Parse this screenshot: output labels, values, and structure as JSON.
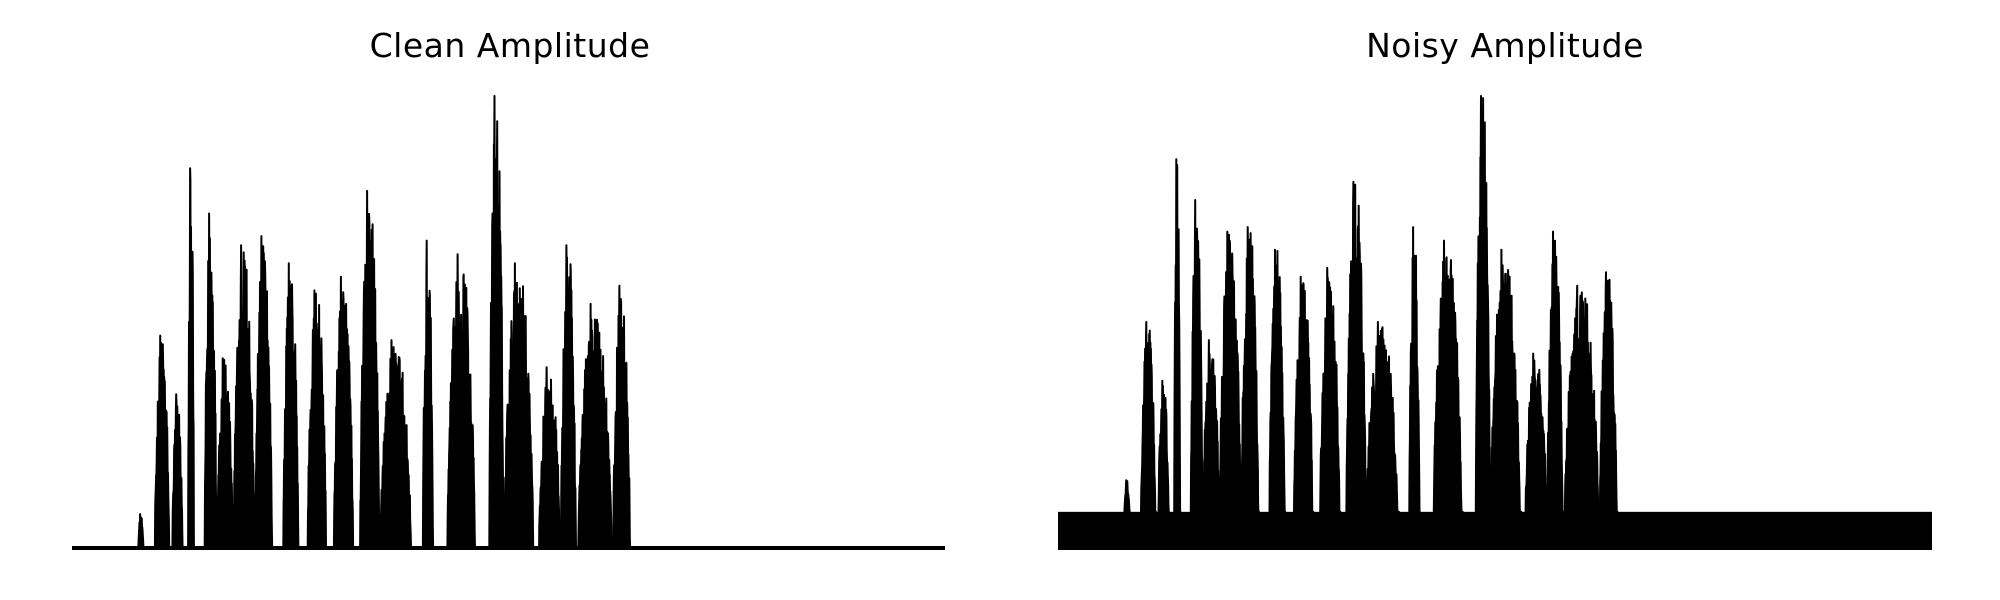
{
  "chart_data": [
    {
      "type": "area",
      "title": "Clean Amplitude",
      "xlabel": "",
      "ylabel": "",
      "axes_visible": false,
      "grid": false,
      "color": "#000000",
      "ylim": [
        0,
        1.0
      ],
      "noise_floor": 0.0,
      "x_range": [
        0,
        1000
      ],
      "bursts": [
        {
          "start": 76,
          "end": 82,
          "peak": 0.075
        },
        {
          "start": 95,
          "end": 112,
          "peak": 0.47
        },
        {
          "start": 115,
          "end": 127,
          "peak": 0.34
        },
        {
          "start": 133,
          "end": 140,
          "peak": 0.84
        },
        {
          "start": 152,
          "end": 166,
          "peak": 0.74
        },
        {
          "start": 166,
          "end": 185,
          "peak": 0.42
        },
        {
          "start": 185,
          "end": 210,
          "peak": 0.67
        },
        {
          "start": 210,
          "end": 230,
          "peak": 0.69
        },
        {
          "start": 242,
          "end": 260,
          "peak": 0.63
        },
        {
          "start": 270,
          "end": 292,
          "peak": 0.57
        },
        {
          "start": 300,
          "end": 323,
          "peak": 0.6
        },
        {
          "start": 330,
          "end": 353,
          "peak": 0.79
        },
        {
          "start": 353,
          "end": 390,
          "peak": 0.46
        },
        {
          "start": 402,
          "end": 414,
          "peak": 0.68
        },
        {
          "start": 430,
          "end": 463,
          "peak": 0.65
        },
        {
          "start": 478,
          "end": 495,
          "peak": 1.0
        },
        {
          "start": 495,
          "end": 530,
          "peak": 0.63
        },
        {
          "start": 535,
          "end": 560,
          "peak": 0.4
        },
        {
          "start": 560,
          "end": 578,
          "peak": 0.67
        },
        {
          "start": 580,
          "end": 620,
          "peak": 0.54
        },
        {
          "start": 620,
          "end": 640,
          "peak": 0.58
        }
      ]
    },
    {
      "type": "area",
      "title": "Noisy Amplitude",
      "xlabel": "",
      "ylabel": "",
      "axes_visible": false,
      "grid": false,
      "color": "#000000",
      "ylim": [
        0,
        1.0
      ],
      "noise_floor": 0.08,
      "x_range": [
        0,
        1000
      ],
      "bursts": [
        {
          "start": 76,
          "end": 82,
          "peak": 0.15
        },
        {
          "start": 95,
          "end": 112,
          "peak": 0.5
        },
        {
          "start": 115,
          "end": 127,
          "peak": 0.37
        },
        {
          "start": 133,
          "end": 140,
          "peak": 0.86
        },
        {
          "start": 152,
          "end": 166,
          "peak": 0.77
        },
        {
          "start": 166,
          "end": 185,
          "peak": 0.46
        },
        {
          "start": 185,
          "end": 210,
          "peak": 0.7
        },
        {
          "start": 210,
          "end": 230,
          "peak": 0.71
        },
        {
          "start": 242,
          "end": 260,
          "peak": 0.66
        },
        {
          "start": 270,
          "end": 292,
          "peak": 0.6
        },
        {
          "start": 300,
          "end": 323,
          "peak": 0.62
        },
        {
          "start": 330,
          "end": 353,
          "peak": 0.81
        },
        {
          "start": 353,
          "end": 390,
          "peak": 0.5
        },
        {
          "start": 402,
          "end": 414,
          "peak": 0.71
        },
        {
          "start": 430,
          "end": 463,
          "peak": 0.68
        },
        {
          "start": 478,
          "end": 495,
          "peak": 1.0
        },
        {
          "start": 495,
          "end": 530,
          "peak": 0.66
        },
        {
          "start": 535,
          "end": 560,
          "peak": 0.43
        },
        {
          "start": 560,
          "end": 578,
          "peak": 0.7
        },
        {
          "start": 580,
          "end": 620,
          "peak": 0.58
        },
        {
          "start": 620,
          "end": 640,
          "peak": 0.61
        }
      ]
    }
  ]
}
